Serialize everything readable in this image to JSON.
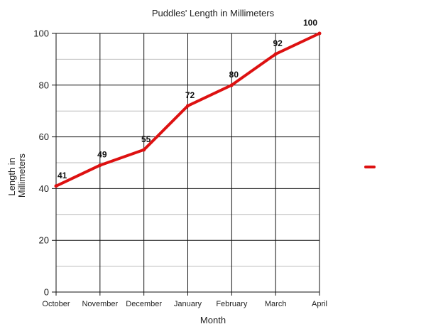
{
  "chart_data": {
    "type": "line",
    "title": "Puddles' Length in Millimeters",
    "xlabel": "Month",
    "ylabel_lines": [
      "Length in",
      "Millimeters"
    ],
    "categories": [
      "October",
      "November",
      "December",
      "January",
      "February",
      "March",
      "April"
    ],
    "series": [
      {
        "values": [
          41,
          49,
          55,
          72,
          80,
          92,
          100
        ],
        "color": "#dd1111"
      }
    ],
    "data_labels": [
      "41",
      "49",
      "55",
      "72",
      "80",
      "92",
      "100"
    ],
    "ylim": [
      0,
      100
    ],
    "yticks": [
      "0",
      "20",
      "40",
      "60",
      "80",
      "100"
    ],
    "grid": true,
    "legend_position": "right",
    "colors": {
      "series": "#dd1111",
      "major_grid": "#111111",
      "minor_grid": "#bbbbbb"
    }
  }
}
